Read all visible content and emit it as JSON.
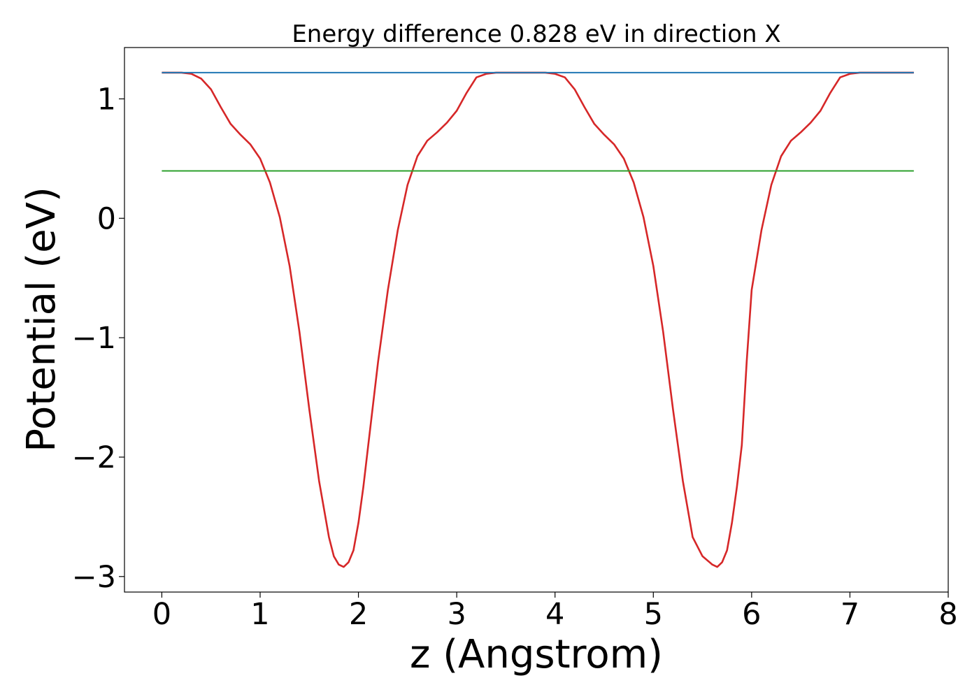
{
  "chart_data": {
    "type": "line",
    "title": "Energy difference 0.828 eV in direction X",
    "xlabel": "z (Angstrom)",
    "ylabel": "Potential (eV)",
    "xlim": [
      -0.38,
      8.0
    ],
    "ylim": [
      -3.13,
      1.43
    ],
    "xticks": [
      0,
      1,
      2,
      3,
      4,
      5,
      6,
      7,
      8
    ],
    "xtick_labels": [
      "0",
      "1",
      "2",
      "3",
      "4",
      "5",
      "6",
      "7",
      "8"
    ],
    "yticks": [
      1,
      0,
      -1,
      -2,
      -3
    ],
    "ytick_labels": [
      "1",
      "0",
      "−1",
      "−2",
      "−3"
    ],
    "grid": false,
    "legend": "none",
    "series": [
      {
        "color": "#d62728",
        "x": [
          0,
          0.1,
          0.2,
          0.3,
          0.4,
          0.5,
          0.6,
          0.7,
          0.8,
          0.9,
          1.0,
          1.1,
          1.2,
          1.3,
          1.4,
          1.5,
          1.6,
          1.7,
          1.75,
          1.8,
          1.85,
          1.9,
          1.95,
          2.0,
          2.05,
          2.1,
          2.2,
          2.3,
          2.4,
          2.5,
          2.6,
          2.7,
          2.8,
          2.9,
          3.0,
          3.1,
          3.2,
          3.3,
          3.4,
          3.5,
          3.6,
          3.7,
          3.8,
          3.9,
          4.0,
          4.1,
          4.2,
          4.3,
          4.4,
          4.5,
          4.6,
          4.7,
          4.8,
          4.9,
          5.0,
          5.1,
          5.2,
          5.3,
          5.4,
          5.5,
          5.6,
          5.65,
          5.7,
          5.75,
          5.8,
          5.85,
          5.9,
          5.95,
          6.0,
          6.1,
          6.2,
          6.3,
          6.4,
          6.5,
          6.6,
          6.7,
          6.8,
          6.9,
          7.0,
          7.1,
          7.2,
          7.3,
          7.4,
          7.5,
          7.6,
          7.65
        ],
        "y": [
          1.22,
          1.22,
          1.22,
          1.21,
          1.17,
          1.08,
          0.93,
          0.79,
          0.7,
          0.62,
          0.5,
          0.3,
          0.01,
          -0.4,
          -0.95,
          -1.6,
          -2.2,
          -2.67,
          -2.83,
          -2.9,
          -2.92,
          -2.88,
          -2.78,
          -2.55,
          -2.25,
          -1.9,
          -1.2,
          -0.6,
          -0.1,
          0.28,
          0.52,
          0.65,
          0.72,
          0.8,
          0.9,
          1.05,
          1.18,
          1.21,
          1.22,
          1.22,
          1.22,
          1.22,
          1.22,
          1.22,
          1.21,
          1.18,
          1.08,
          0.93,
          0.79,
          0.7,
          0.62,
          0.5,
          0.3,
          0.01,
          -0.4,
          -0.95,
          -1.6,
          -2.2,
          -2.67,
          -2.83,
          -2.9,
          -2.92,
          -2.88,
          -2.78,
          -2.55,
          -2.25,
          -1.9,
          -1.2,
          -0.6,
          -0.1,
          0.28,
          0.52,
          0.65,
          0.72,
          0.8,
          0.9,
          1.05,
          1.18,
          1.21,
          1.22,
          1.22,
          1.22,
          1.22,
          1.22,
          1.22,
          1.22
        ]
      },
      {
        "color": "#1f77b4",
        "x": [
          0,
          7.65
        ],
        "y": [
          1.22,
          1.22
        ]
      },
      {
        "color": "#2ca02c",
        "x": [
          0,
          7.65
        ],
        "y": [
          0.397,
          0.397
        ]
      }
    ]
  }
}
